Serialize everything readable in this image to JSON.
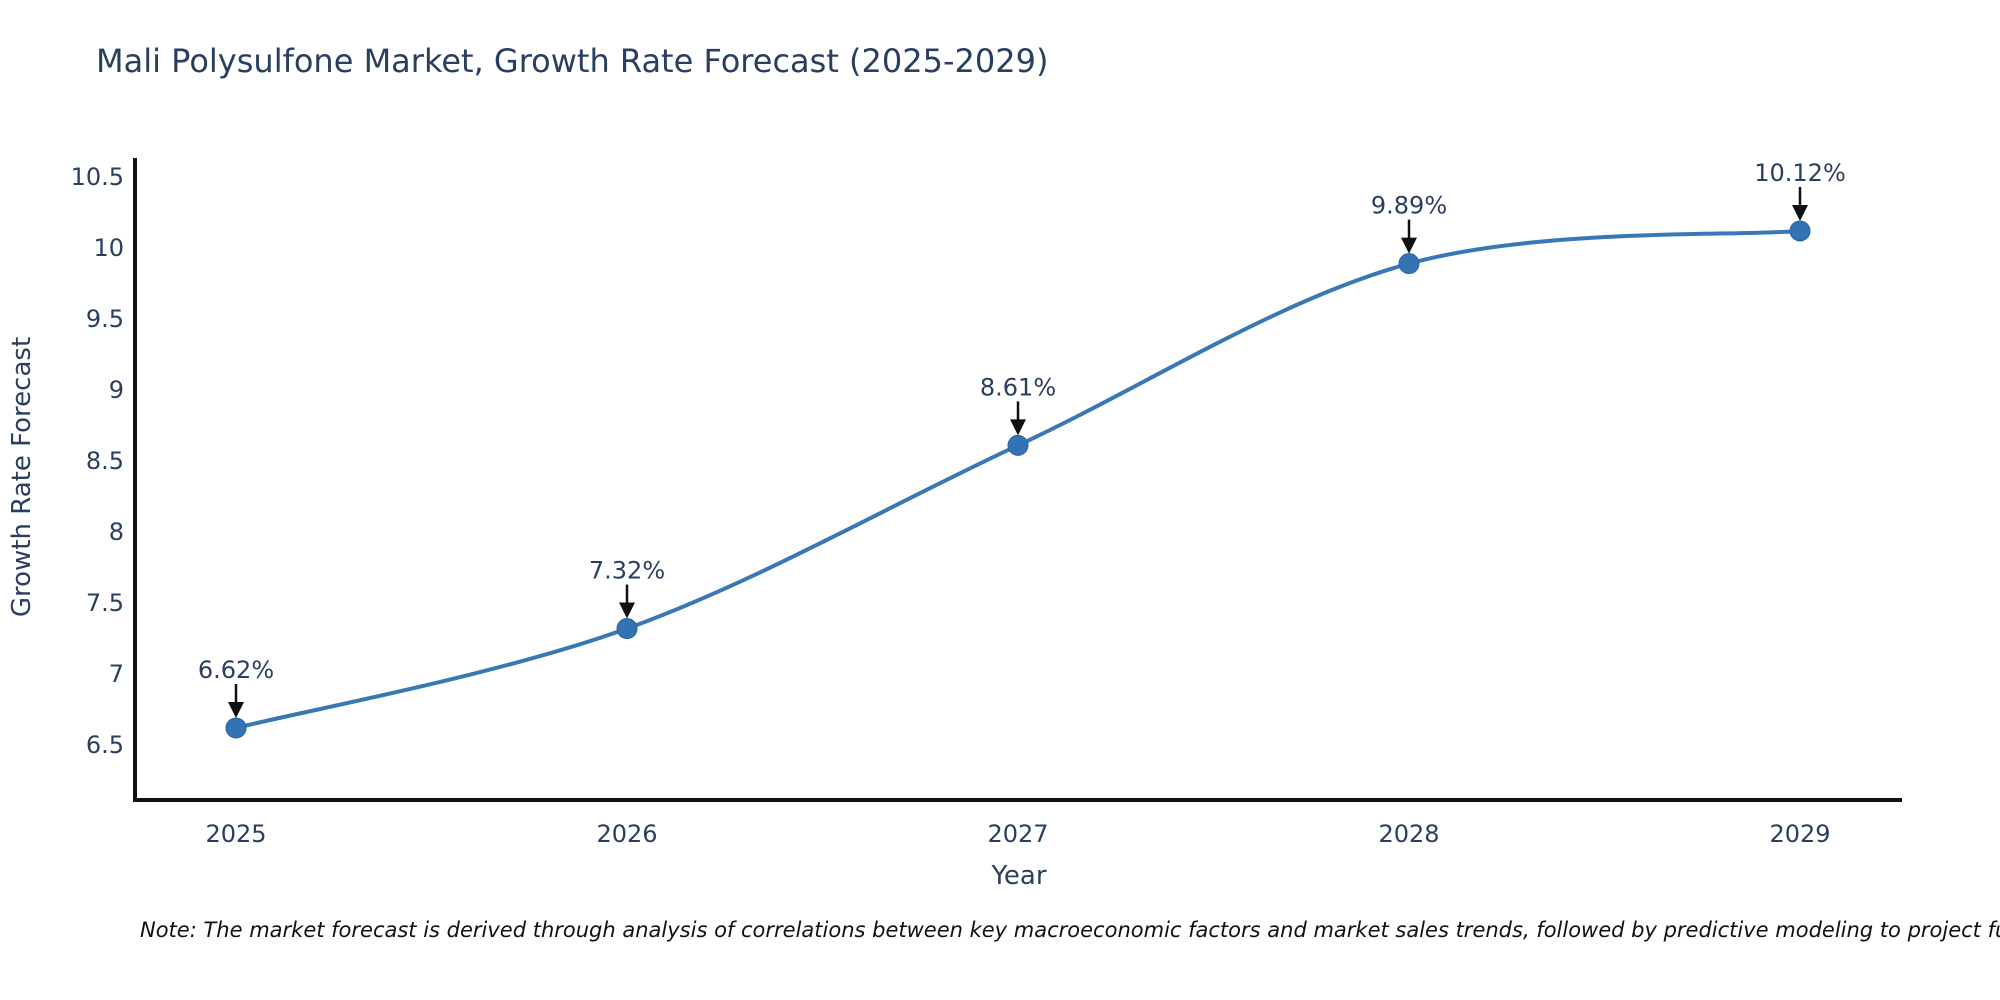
{
  "chart_data": {
    "type": "line",
    "title": "Mali Polysulfone Market, Growth Rate Forecast (2025-2029)",
    "xlabel": "Year",
    "ylabel": "Growth Rate Forecast",
    "x": [
      2025,
      2026,
      2027,
      2028,
      2029
    ],
    "values": [
      6.62,
      7.32,
      8.61,
      9.89,
      10.12
    ],
    "data_labels": [
      "6.62%",
      "7.32%",
      "8.61%",
      "9.89%",
      "10.12%"
    ],
    "xtick_labels": [
      "2025",
      "2026",
      "2027",
      "2028",
      "2029"
    ],
    "ytick_labels": [
      "6.5",
      "7",
      "7.5",
      "8",
      "8.5",
      "9",
      "9.5",
      "10",
      "10.5"
    ],
    "ytick_values": [
      6.5,
      7,
      7.5,
      8,
      8.5,
      9,
      9.5,
      10,
      10.5
    ],
    "ylim": [
      6.11,
      10.56
    ],
    "xlim": [
      2024.74,
      2029.27
    ],
    "grid": false,
    "legend_position": "none",
    "line_shape": "spline",
    "marker": "circle",
    "colors": {
      "line": "#3a78b5",
      "marker_fill": "#3173b3",
      "marker_edge": "#2a65a0",
      "text": "#2a3f5f",
      "axis": "#111111",
      "arrow": "#111111",
      "background": "#ffffff"
    }
  },
  "note": "Note: The market forecast is derived through analysis of correlations between key macroeconomic factors and market sales trends, followed by predictive modeling to project future sal"
}
